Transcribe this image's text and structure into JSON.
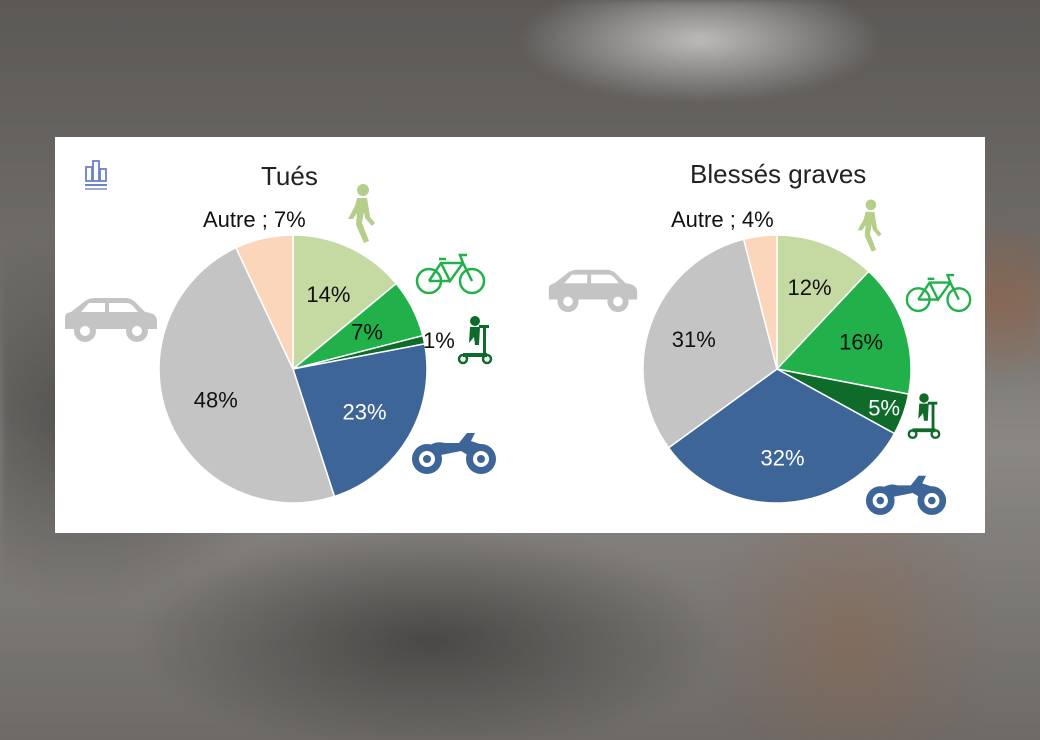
{
  "chart_data": [
    {
      "type": "pie",
      "title": "Tués",
      "slices": [
        {
          "label": "Piéton",
          "value": 14,
          "display": "14%",
          "color": "#c5d9a3",
          "text_color": "#111111"
        },
        {
          "label": "Vélo",
          "value": 7,
          "display": "7%",
          "color": "#22b04b",
          "text_color": "#111111"
        },
        {
          "label": "Trottinette",
          "value": 1,
          "display": "1%",
          "color": "#0f6b2a",
          "text_color": "#111111"
        },
        {
          "label": "Moto",
          "value": 23,
          "display": "23%",
          "color": "#3d6597",
          "text_color": "#ffffff"
        },
        {
          "label": "Voiture",
          "value": 48,
          "display": "48%",
          "color": "#c4c4c4",
          "text_color": "#111111"
        },
        {
          "label": "Autre",
          "value": 7,
          "display": "Autre ; 7%",
          "color": "#fcd6bb",
          "text_color": "#111111"
        }
      ]
    },
    {
      "type": "pie",
      "title": "Blessés graves",
      "slices": [
        {
          "label": "Piéton",
          "value": 12,
          "display": "12%",
          "color": "#c5d9a3",
          "text_color": "#111111"
        },
        {
          "label": "Vélo",
          "value": 16,
          "display": "16%",
          "color": "#22b04b",
          "text_color": "#111111"
        },
        {
          "label": "Trottinette",
          "value": 5,
          "display": "5%",
          "color": "#0f6b2a",
          "text_color": "#ffffff"
        },
        {
          "label": "Moto",
          "value": 32,
          "display": "32%",
          "color": "#3d6597",
          "text_color": "#ffffff"
        },
        {
          "label": "Voiture",
          "value": 31,
          "display": "31%",
          "color": "#c4c4c4",
          "text_color": "#111111"
        },
        {
          "label": "Autre",
          "value": 4,
          "display": "Autre ; 4%",
          "color": "#fcd6bb",
          "text_color": "#111111"
        }
      ]
    }
  ],
  "icons": {
    "pedestrian": {
      "name": "pedestrian-icon",
      "color": "#b5cf8a"
    },
    "bicycle": {
      "name": "bicycle-icon",
      "color": "#22b04b"
    },
    "scooter": {
      "name": "scooter-icon",
      "color": "#0f6b2a"
    },
    "motorcycle": {
      "name": "motorcycle-icon",
      "color": "#3d6597"
    },
    "car": {
      "name": "car-icon",
      "color": "#c4c4c4"
    },
    "logo": {
      "name": "logo-icon",
      "color": "#6a7fd0"
    }
  }
}
